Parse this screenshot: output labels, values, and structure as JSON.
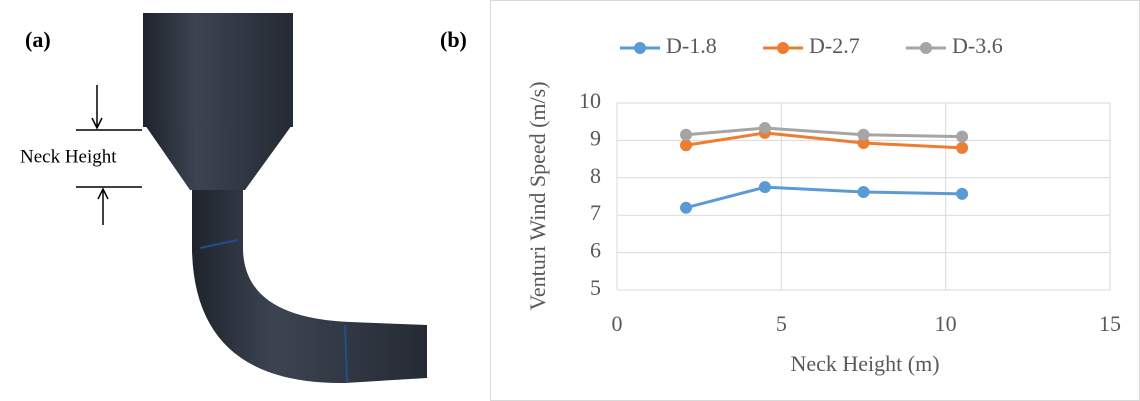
{
  "panel_a": {
    "label": "(a)",
    "annotation": "Neck Height"
  },
  "chart_data": {
    "type": "line",
    "panel_label": "(b)",
    "x_label": "Neck Height (m)",
    "y_label": "Venturi Wind Speed (m/s)",
    "x": [
      2.1,
      4.5,
      7.5,
      10.5
    ],
    "series": [
      {
        "name": "D-1.8",
        "color": "#5b9bd5",
        "values": [
          7.2,
          7.75,
          7.62,
          7.57
        ]
      },
      {
        "name": "D-2.7",
        "color": "#ed7d31",
        "values": [
          8.87,
          9.2,
          8.93,
          8.8
        ]
      },
      {
        "name": "D-3.6",
        "color": "#a5a5a5",
        "values": [
          9.15,
          9.33,
          9.15,
          9.1
        ]
      }
    ],
    "xlim": [
      0,
      15
    ],
    "xticks": [
      0,
      5,
      10,
      15
    ],
    "ylim": [
      5,
      10
    ],
    "yticks": [
      5,
      6,
      7,
      8,
      9,
      10
    ],
    "grid": true,
    "legend": "top"
  }
}
